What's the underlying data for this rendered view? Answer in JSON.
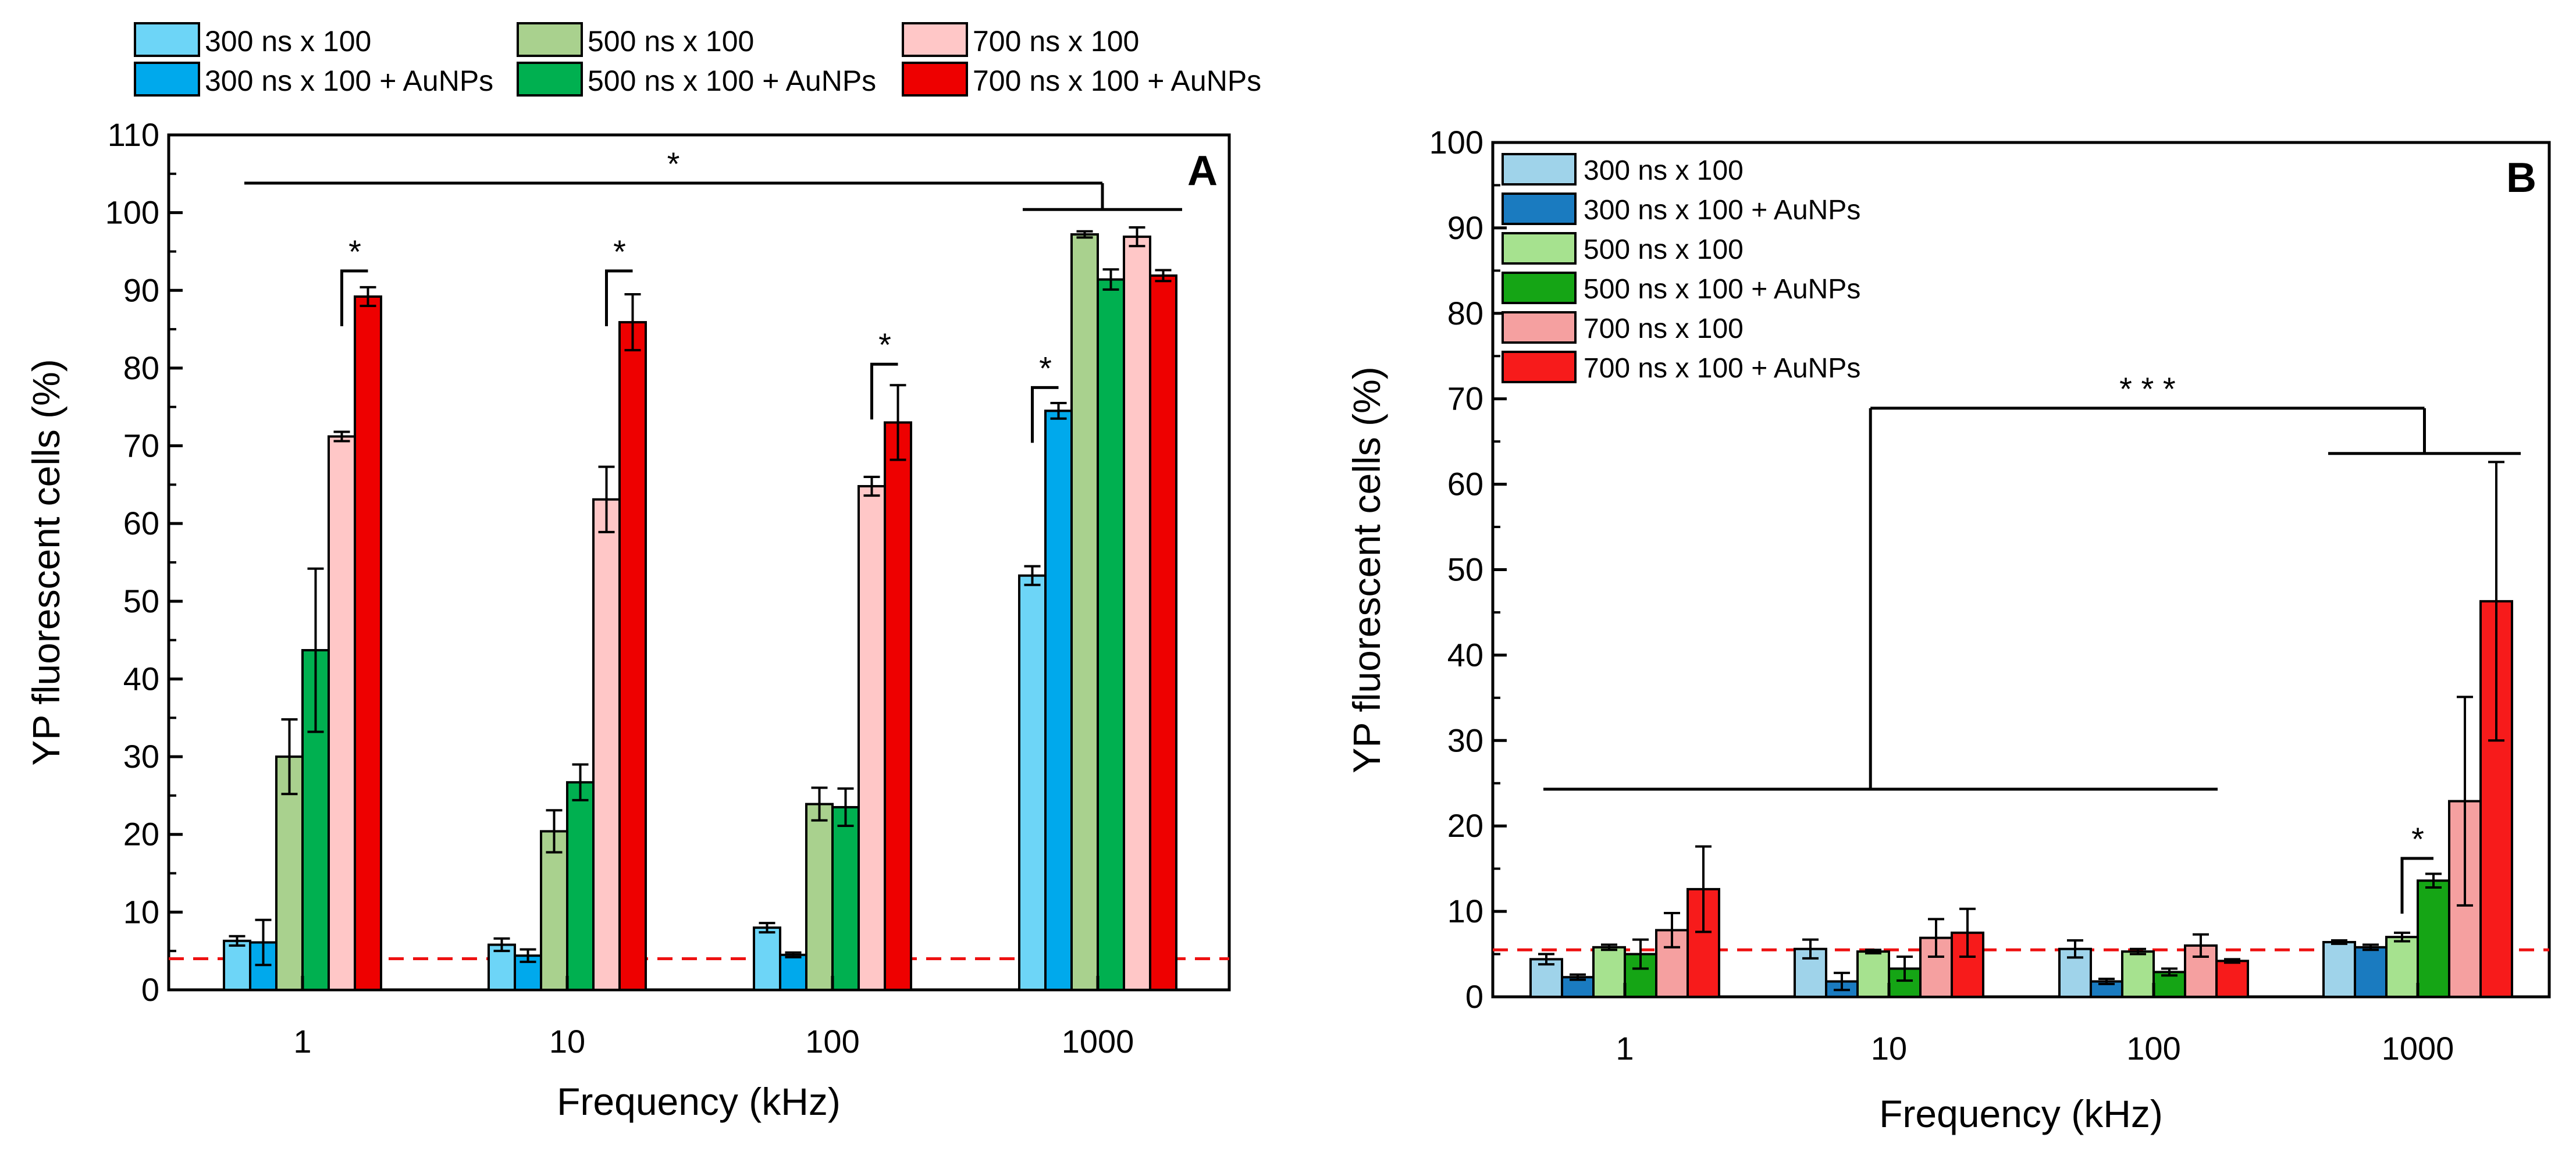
{
  "colors": {
    "light_blue": "#6dd5f7",
    "blue": "#00a9ec",
    "light_green": "#a9d18e",
    "green": "#00b050",
    "pink": "#ffc7c7",
    "red": "#ee0000",
    "b_light_blue": "#9fd3ea",
    "b_blue": "#1a7bc0",
    "b_light_green": "#a6e28f",
    "b_green": "#15a515",
    "b_pink": "#f5a0a0",
    "b_red": "#f71b1b",
    "threshold": "#ee1111"
  },
  "chart_data": [
    {
      "id": "A",
      "type": "bar",
      "panel_label": "A",
      "xlabel": "Frequency (kHz)",
      "ylabel": "YP fluorescent cells (%)",
      "ylim": [
        0,
        110
      ],
      "ytick_values": [
        0,
        10,
        20,
        30,
        40,
        50,
        60,
        70,
        80,
        90,
        100,
        110
      ],
      "ytick_labels": [
        "0",
        "10",
        "20",
        "30",
        "40",
        "50",
        "60",
        "70",
        "80",
        "90",
        "100",
        "110"
      ],
      "categories": [
        "1",
        "10",
        "100",
        "1000"
      ],
      "threshold": 4,
      "legend": {
        "placement": "above",
        "entries": [
          "300 ns x 100",
          "500 ns x 100",
          "700 ns x 100",
          "300 ns x 100 + AuNPs",
          "500 ns x 100 + AuNPs",
          "700 ns x 100 + AuNPs"
        ],
        "swatches": [
          "#6dd5f7",
          "#a9d18e",
          "#ffc7c7",
          "#00a9ec",
          "#00b050",
          "#ee0000"
        ]
      },
      "series": [
        {
          "name": "300 ns x 100",
          "color": "#6dd5f7",
          "values": [
            6.3,
            5.8,
            8.0,
            53.3
          ],
          "errors": [
            0.6,
            0.8,
            0.6,
            1.2
          ]
        },
        {
          "name": "300 ns x 100 + AuNPs",
          "color": "#00a9ec",
          "values": [
            6.1,
            4.4,
            4.5,
            74.5
          ],
          "errors": [
            2.9,
            0.8,
            0.3,
            1.0
          ]
        },
        {
          "name": "500 ns x 100",
          "color": "#a9d18e",
          "values": [
            30.0,
            20.4,
            23.9,
            97.2
          ],
          "errors": [
            4.8,
            2.7,
            2.1,
            0.4
          ]
        },
        {
          "name": "500 ns x 100 + AuNPs",
          "color": "#00b050",
          "values": [
            43.7,
            26.7,
            23.5,
            91.4
          ],
          "errors": [
            10.5,
            2.3,
            2.4,
            1.3
          ]
        },
        {
          "name": "700 ns x 100",
          "color": "#ffc7c7",
          "values": [
            71.2,
            63.1,
            64.8,
            96.9
          ],
          "errors": [
            0.6,
            4.2,
            1.2,
            1.2
          ]
        },
        {
          "name": "700 ns x 100 + AuNPs",
          "color": "#ee0000",
          "values": [
            89.2,
            85.9,
            73.0,
            91.9
          ],
          "errors": [
            1.2,
            3.6,
            4.8,
            0.7
          ]
        }
      ],
      "annotations": [
        {
          "type": "pair",
          "group": 0,
          "from": 4,
          "to": 5,
          "y": 92.5,
          "label": "*"
        },
        {
          "type": "pair",
          "group": 1,
          "from": 4,
          "to": 5,
          "y": 92.5,
          "label": "*"
        },
        {
          "type": "pair",
          "group": 2,
          "from": 4,
          "to": 5,
          "y": 80.5,
          "label": "*"
        },
        {
          "type": "pair",
          "group": 3,
          "from": 0,
          "to": 1,
          "y": 77.5,
          "label": "*"
        },
        {
          "type": "span",
          "from_group": 0,
          "to_group": 3,
          "y": 103.8,
          "group_bar_y": 100.4,
          "label": "*"
        }
      ]
    },
    {
      "id": "B",
      "type": "bar",
      "panel_label": "B",
      "xlabel": "Frequency (kHz)",
      "ylabel": "YP fluorescent cells (%)",
      "ylim": [
        0,
        100
      ],
      "ytick_values": [
        0,
        10,
        20,
        30,
        40,
        50,
        60,
        70,
        80,
        90,
        100
      ],
      "ytick_labels": [
        "0",
        "10",
        "20",
        "30",
        "40",
        "50",
        "60",
        "70",
        "80",
        "90",
        "100"
      ],
      "categories": [
        "1",
        "10",
        "100",
        "1000"
      ],
      "threshold": 5.5,
      "legend": {
        "placement": "top-left",
        "entries": [
          "300 ns x 100",
          "300 ns x 100 + AuNPs",
          "500 ns x 100",
          "500 ns x 100 + AuNPs",
          "700 ns x 100",
          "700 ns x 100 + AuNPs"
        ],
        "swatches": [
          "#9fd3ea",
          "#1a7bc0",
          "#a6e28f",
          "#15a515",
          "#f5a0a0",
          "#f71b1b"
        ]
      },
      "series": [
        {
          "name": "300 ns x 100",
          "color": "#9fd3ea",
          "values": [
            4.4,
            5.6,
            5.6,
            6.4
          ],
          "errors": [
            0.6,
            1.1,
            1.0,
            0.2
          ]
        },
        {
          "name": "300 ns x 100 + AuNPs",
          "color": "#1a7bc0",
          "values": [
            2.3,
            1.8,
            1.8,
            5.8
          ],
          "errors": [
            0.3,
            1.0,
            0.3,
            0.3
          ]
        },
        {
          "name": "500 ns x 100",
          "color": "#a6e28f",
          "values": [
            5.8,
            5.3,
            5.3,
            7.0
          ],
          "errors": [
            0.3,
            0.2,
            0.3,
            0.5
          ]
        },
        {
          "name": "500 ns x 100 + AuNPs",
          "color": "#15a515",
          "values": [
            5.0,
            3.3,
            2.9,
            13.6
          ],
          "errors": [
            1.7,
            1.4,
            0.4,
            0.8
          ]
        },
        {
          "name": "700 ns x 100",
          "color": "#f5a0a0",
          "values": [
            7.8,
            6.9,
            6.0,
            22.9
          ],
          "errors": [
            2.0,
            2.2,
            1.3,
            12.2
          ]
        },
        {
          "name": "700 ns x 100 + AuNPs",
          "color": "#f71b1b",
          "values": [
            12.6,
            7.5,
            4.2,
            46.3
          ],
          "errors": [
            5.0,
            2.8,
            0.2,
            16.3
          ]
        }
      ],
      "annotations": [
        {
          "type": "pair",
          "group": 3,
          "from": 2,
          "to": 3,
          "y": 16.2,
          "label": "*"
        },
        {
          "type": "span_b",
          "left_y": 24.3,
          "right_y": 63.6,
          "top_y": 68.9,
          "label": "* * *"
        }
      ]
    }
  ]
}
